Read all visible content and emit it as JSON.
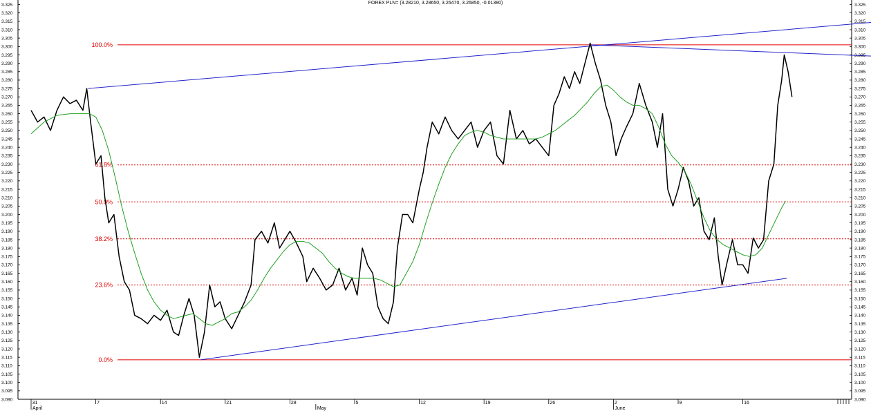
{
  "chart_data": {
    "type": "line",
    "title": "FOREX PLN= (3.28210, 3.28650, 3.26470, 3.26850, -0.01380)",
    "xlabel": "",
    "ylabel": "",
    "ylim": [
      3.09,
      3.325
    ],
    "y_tick_labels": [
      "3.090",
      "3.095",
      "3.100",
      "3.105",
      "3.110",
      "3.115",
      "3.120",
      "3.125",
      "3.130",
      "3.135",
      "3.140",
      "3.145",
      "3.150",
      "3.155",
      "3.160",
      "3.165",
      "3.170",
      "3.175",
      "3.180",
      "3.185",
      "3.190",
      "3.195",
      "3.200",
      "3.205",
      "3.210",
      "3.215",
      "3.220",
      "3.225",
      "3.230",
      "3.235",
      "3.240",
      "3.245",
      "3.250",
      "3.255",
      "3.260",
      "3.265",
      "3.270",
      "3.275",
      "3.280",
      "3.285",
      "3.290",
      "3.295",
      "3.300",
      "3.305",
      "3.310",
      "3.315",
      "3.320",
      "3.325"
    ],
    "x_ticks": [
      {
        "day": "31",
        "month": "April",
        "t": 0
      },
      {
        "day": "7",
        "month": "",
        "t": 5
      },
      {
        "day": "14",
        "month": "",
        "t": 10
      },
      {
        "day": "21",
        "month": "",
        "t": 15
      },
      {
        "day": "28",
        "month": "",
        "t": 20
      },
      {
        "day": "",
        "month": "May",
        "t": 22
      },
      {
        "day": "5",
        "month": "",
        "t": 25
      },
      {
        "day": "12",
        "month": "",
        "t": 30
      },
      {
        "day": "19",
        "month": "",
        "t": 35
      },
      {
        "day": "26",
        "month": "",
        "t": 40
      },
      {
        "day": "2",
        "month": "June",
        "t": 45
      },
      {
        "day": "9",
        "month": "",
        "t": 50
      },
      {
        "day": "16",
        "month": "",
        "t": 55
      }
    ],
    "series": [
      {
        "color": "#000000",
        "points": [
          [
            0,
            3.262
          ],
          [
            0.5,
            3.255
          ],
          [
            1,
            3.258
          ],
          [
            1.5,
            3.25
          ],
          [
            2,
            3.262
          ],
          [
            2.5,
            3.27
          ],
          [
            3,
            3.266
          ],
          [
            3.5,
            3.268
          ],
          [
            4,
            3.262
          ],
          [
            4.3,
            3.275
          ],
          [
            4.6,
            3.255
          ],
          [
            5,
            3.23
          ],
          [
            5.4,
            3.235
          ],
          [
            5.7,
            3.21
          ],
          [
            6,
            3.195
          ],
          [
            6.4,
            3.2
          ],
          [
            6.8,
            3.175
          ],
          [
            7.2,
            3.16
          ],
          [
            7.6,
            3.155
          ],
          [
            8,
            3.14
          ],
          [
            8.5,
            3.138
          ],
          [
            9,
            3.135
          ],
          [
            9.5,
            3.14
          ],
          [
            10,
            3.137
          ],
          [
            10.5,
            3.143
          ],
          [
            11,
            3.13
          ],
          [
            11.4,
            3.128
          ],
          [
            11.8,
            3.14
          ],
          [
            12.2,
            3.15
          ],
          [
            12.6,
            3.14
          ],
          [
            13,
            3.115
          ],
          [
            13.4,
            3.13
          ],
          [
            13.8,
            3.158
          ],
          [
            14.2,
            3.145
          ],
          [
            14.6,
            3.148
          ],
          [
            15,
            3.138
          ],
          [
            15.5,
            3.132
          ],
          [
            16,
            3.14
          ],
          [
            16.5,
            3.148
          ],
          [
            17,
            3.158
          ],
          [
            17.3,
            3.185
          ],
          [
            17.8,
            3.19
          ],
          [
            18.3,
            3.183
          ],
          [
            18.8,
            3.195
          ],
          [
            19.2,
            3.18
          ],
          [
            19.6,
            3.185
          ],
          [
            20,
            3.19
          ],
          [
            20.5,
            3.183
          ],
          [
            21,
            3.175
          ],
          [
            21.3,
            3.16
          ],
          [
            21.8,
            3.168
          ],
          [
            22.3,
            3.162
          ],
          [
            22.8,
            3.155
          ],
          [
            23.3,
            3.158
          ],
          [
            23.8,
            3.168
          ],
          [
            24.3,
            3.155
          ],
          [
            24.8,
            3.162
          ],
          [
            25.2,
            3.152
          ],
          [
            25.6,
            3.18
          ],
          [
            26,
            3.17
          ],
          [
            26.4,
            3.165
          ],
          [
            26.8,
            3.145
          ],
          [
            27.2,
            3.138
          ],
          [
            27.6,
            3.135
          ],
          [
            28,
            3.148
          ],
          [
            28.3,
            3.18
          ],
          [
            28.7,
            3.2
          ],
          [
            29.1,
            3.2
          ],
          [
            29.5,
            3.195
          ],
          [
            30,
            3.215
          ],
          [
            30.3,
            3.225
          ],
          [
            30.6,
            3.24
          ],
          [
            31,
            3.255
          ],
          [
            31.5,
            3.248
          ],
          [
            32,
            3.258
          ],
          [
            32.5,
            3.25
          ],
          [
            33,
            3.245
          ],
          [
            33.5,
            3.25
          ],
          [
            34,
            3.255
          ],
          [
            34.5,
            3.24
          ],
          [
            35,
            3.25
          ],
          [
            35.5,
            3.255
          ],
          [
            36,
            3.235
          ],
          [
            36.5,
            3.23
          ],
          [
            37,
            3.262
          ],
          [
            37.5,
            3.245
          ],
          [
            38,
            3.25
          ],
          [
            38.5,
            3.242
          ],
          [
            39,
            3.245
          ],
          [
            39.5,
            3.24
          ],
          [
            40,
            3.235
          ],
          [
            40.4,
            3.265
          ],
          [
            40.8,
            3.272
          ],
          [
            41.2,
            3.282
          ],
          [
            41.6,
            3.275
          ],
          [
            42,
            3.285
          ],
          [
            42.4,
            3.278
          ],
          [
            42.8,
            3.29
          ],
          [
            43.2,
            3.302
          ],
          [
            43.6,
            3.29
          ],
          [
            44,
            3.28
          ],
          [
            44.4,
            3.265
          ],
          [
            44.8,
            3.255
          ],
          [
            45.2,
            3.235
          ],
          [
            45.6,
            3.245
          ],
          [
            46,
            3.252
          ],
          [
            46.5,
            3.26
          ],
          [
            47,
            3.278
          ],
          [
            47.5,
            3.265
          ],
          [
            48,
            3.255
          ],
          [
            48.4,
            3.24
          ],
          [
            48.8,
            3.26
          ],
          [
            49.2,
            3.215
          ],
          [
            49.6,
            3.205
          ],
          [
            50,
            3.215
          ],
          [
            50.4,
            3.228
          ],
          [
            50.8,
            3.22
          ],
          [
            51.2,
            3.205
          ],
          [
            51.6,
            3.21
          ],
          [
            52,
            3.19
          ],
          [
            52.4,
            3.185
          ],
          [
            52.8,
            3.198
          ],
          [
            53.1,
            3.175
          ],
          [
            53.4,
            3.158
          ],
          [
            53.8,
            3.172
          ],
          [
            54.2,
            3.185
          ],
          [
            54.6,
            3.17
          ],
          [
            55,
            3.17
          ],
          [
            55.4,
            3.165
          ],
          [
            55.8,
            3.186
          ],
          [
            56.2,
            3.18
          ],
          [
            56.6,
            3.185
          ],
          [
            57,
            3.22
          ],
          [
            57.4,
            3.23
          ],
          [
            57.7,
            3.265
          ],
          [
            58,
            3.28
          ],
          [
            58.2,
            3.295
          ],
          [
            58.5,
            3.285
          ],
          [
            58.8,
            3.27
          ]
        ]
      },
      {
        "color": "#20a020",
        "points": [
          [
            0,
            3.248
          ],
          [
            1,
            3.255
          ],
          [
            2,
            3.259
          ],
          [
            3,
            3.26
          ],
          [
            4,
            3.26
          ],
          [
            4.5,
            3.26
          ],
          [
            5,
            3.258
          ],
          [
            5.5,
            3.25
          ],
          [
            6,
            3.238
          ],
          [
            6.5,
            3.222
          ],
          [
            7,
            3.205
          ],
          [
            7.5,
            3.19
          ],
          [
            8,
            3.177
          ],
          [
            8.5,
            3.165
          ],
          [
            9,
            3.155
          ],
          [
            9.5,
            3.148
          ],
          [
            10,
            3.143
          ],
          [
            10.5,
            3.14
          ],
          [
            11,
            3.138
          ],
          [
            11.5,
            3.139
          ],
          [
            12,
            3.14
          ],
          [
            12.5,
            3.141
          ],
          [
            13,
            3.138
          ],
          [
            13.5,
            3.135
          ],
          [
            14,
            3.134
          ],
          [
            14.5,
            3.136
          ],
          [
            15,
            3.138
          ],
          [
            15.5,
            3.141
          ],
          [
            16,
            3.142
          ],
          [
            16.5,
            3.145
          ],
          [
            17,
            3.149
          ],
          [
            17.5,
            3.155
          ],
          [
            18,
            3.162
          ],
          [
            18.5,
            3.168
          ],
          [
            19,
            3.173
          ],
          [
            19.5,
            3.178
          ],
          [
            20,
            3.182
          ],
          [
            20.5,
            3.184
          ],
          [
            21,
            3.184
          ],
          [
            21.5,
            3.183
          ],
          [
            22,
            3.18
          ],
          [
            22.5,
            3.177
          ],
          [
            23,
            3.172
          ],
          [
            23.5,
            3.168
          ],
          [
            24,
            3.165
          ],
          [
            24.5,
            3.163
          ],
          [
            25,
            3.162
          ],
          [
            25.5,
            3.162
          ],
          [
            26,
            3.162
          ],
          [
            26.5,
            3.162
          ],
          [
            27,
            3.161
          ],
          [
            27.5,
            3.159
          ],
          [
            28,
            3.157
          ],
          [
            28.5,
            3.158
          ],
          [
            29,
            3.165
          ],
          [
            29.5,
            3.172
          ],
          [
            30,
            3.182
          ],
          [
            30.5,
            3.195
          ],
          [
            31,
            3.207
          ],
          [
            31.5,
            3.218
          ],
          [
            32,
            3.228
          ],
          [
            32.5,
            3.236
          ],
          [
            33,
            3.242
          ],
          [
            33.5,
            3.247
          ],
          [
            34,
            3.249
          ],
          [
            34.5,
            3.25
          ],
          [
            35,
            3.249
          ],
          [
            35.5,
            3.247
          ],
          [
            36,
            3.246
          ],
          [
            36.5,
            3.245
          ],
          [
            37,
            3.245
          ],
          [
            37.5,
            3.245
          ],
          [
            38,
            3.245
          ],
          [
            38.5,
            3.245
          ],
          [
            39,
            3.245
          ],
          [
            39.5,
            3.246
          ],
          [
            40,
            3.248
          ],
          [
            40.5,
            3.25
          ],
          [
            41,
            3.253
          ],
          [
            41.5,
            3.256
          ],
          [
            42,
            3.259
          ],
          [
            42.5,
            3.263
          ],
          [
            43,
            3.267
          ],
          [
            43.5,
            3.272
          ],
          [
            44,
            3.276
          ],
          [
            44.5,
            3.277
          ],
          [
            45,
            3.274
          ],
          [
            45.5,
            3.27
          ],
          [
            46,
            3.267
          ],
          [
            46.5,
            3.265
          ],
          [
            47,
            3.265
          ],
          [
            47.5,
            3.263
          ],
          [
            48,
            3.26
          ],
          [
            48.5,
            3.252
          ],
          [
            49,
            3.242
          ],
          [
            49.5,
            3.235
          ],
          [
            50,
            3.231
          ],
          [
            50.5,
            3.226
          ],
          [
            51,
            3.218
          ],
          [
            51.5,
            3.208
          ],
          [
            52,
            3.198
          ],
          [
            52.5,
            3.19
          ],
          [
            53,
            3.185
          ],
          [
            53.5,
            3.182
          ],
          [
            54,
            3.18
          ],
          [
            54.5,
            3.178
          ],
          [
            55,
            3.176
          ],
          [
            55.5,
            3.175
          ],
          [
            56,
            3.176
          ],
          [
            56.5,
            3.18
          ],
          [
            57,
            3.188
          ],
          [
            57.5,
            3.196
          ],
          [
            58,
            3.204
          ],
          [
            58.3,
            3.208
          ]
        ]
      }
    ],
    "fib_levels": [
      {
        "label": "100.0%",
        "value": 3.301
      },
      {
        "label": "61.8%",
        "value": 3.2295
      },
      {
        "label": "50.0%",
        "value": 3.2075
      },
      {
        "label": "38.2%",
        "value": 3.1855
      },
      {
        "label": "23.6%",
        "value": 3.158
      },
      {
        "label": "0.0%",
        "value": 3.1135
      }
    ],
    "trendlines": [
      {
        "from": [
          4.4,
          3.275
        ],
        "to": [
          66,
          3.315
        ]
      },
      {
        "from": [
          13.1,
          3.1135
        ],
        "to": [
          58.4,
          3.162
        ]
      },
      {
        "from": [
          43.2,
          3.301
        ],
        "to": [
          66,
          3.294
        ]
      }
    ],
    "grid": false,
    "x_range": [
      -1,
      66
    ]
  },
  "colors": {
    "price": "#000000",
    "moving_average": "#20a020",
    "fibonacci": "#e00000",
    "trendline": "#2222cc"
  }
}
